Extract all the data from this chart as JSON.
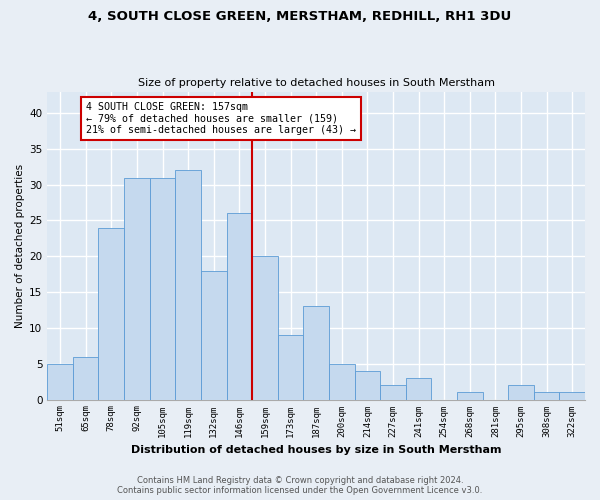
{
  "title1": "4, SOUTH CLOSE GREEN, MERSTHAM, REDHILL, RH1 3DU",
  "title2": "Size of property relative to detached houses in South Merstham",
  "xlabel": "Distribution of detached houses by size in South Merstham",
  "ylabel": "Number of detached properties",
  "bar_labels": [
    "51sqm",
    "65sqm",
    "78sqm",
    "92sqm",
    "105sqm",
    "119sqm",
    "132sqm",
    "146sqm",
    "159sqm",
    "173sqm",
    "187sqm",
    "200sqm",
    "214sqm",
    "227sqm",
    "241sqm",
    "254sqm",
    "268sqm",
    "281sqm",
    "295sqm",
    "308sqm",
    "322sqm"
  ],
  "bar_values": [
    5,
    6,
    24,
    31,
    31,
    32,
    18,
    26,
    20,
    9,
    13,
    5,
    4,
    2,
    3,
    0,
    1,
    0,
    2,
    1,
    1
  ],
  "bar_color": "#c5d9ee",
  "bar_edgecolor": "#5b9bd5",
  "bg_color": "#dde8f3",
  "grid_color": "#ffffff",
  "vline_color": "#cc0000",
  "annotation_text": "4 SOUTH CLOSE GREEN: 157sqm\n← 79% of detached houses are smaller (159)\n21% of semi-detached houses are larger (43) →",
  "annotation_box_edgecolor": "#cc0000",
  "ylim": [
    0,
    43
  ],
  "yticks": [
    0,
    5,
    10,
    15,
    20,
    25,
    30,
    35,
    40
  ],
  "footer1": "Contains HM Land Registry data © Crown copyright and database right 2024.",
  "footer2": "Contains public sector information licensed under the Open Government Licence v3.0.",
  "fig_bg": "#e8eef5"
}
